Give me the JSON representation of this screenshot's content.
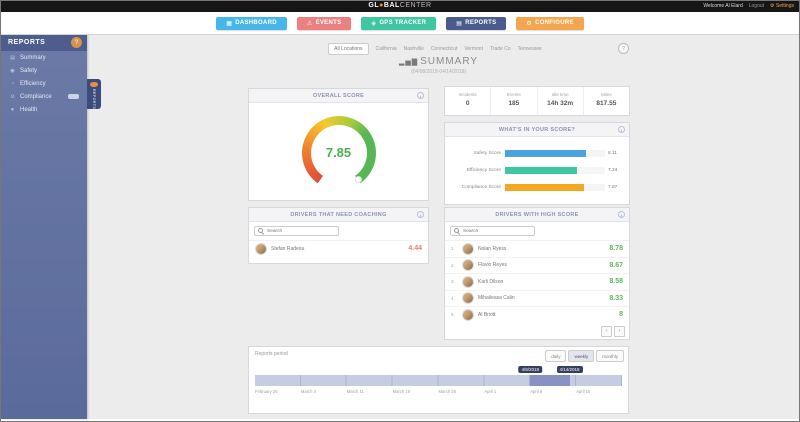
{
  "topbar": {
    "logo_pre": "GL",
    "logo_dot": "●",
    "logo_mid": "BAL",
    "logo_suf": "CENTER",
    "welcome": "Welcome Al Elard",
    "logout": "Logout",
    "settings_icon": "⚙",
    "settings": "Settings"
  },
  "nav": {
    "items": [
      {
        "label": "DASHBOARD",
        "icon": "▦",
        "color": "#47b7e9"
      },
      {
        "label": "EVENTS",
        "icon": "⚠",
        "color": "#ea8080"
      },
      {
        "label": "GPS TRACKER",
        "icon": "◈",
        "color": "#3fc6a3"
      },
      {
        "label": "REPORTS",
        "icon": "▤",
        "color": "#4a5b8e"
      },
      {
        "label": "CONFIGURE",
        "icon": "⚙",
        "color": "#f3a64d"
      }
    ],
    "active": "REPORTS"
  },
  "sidebar": {
    "title": "REPORTS",
    "help_icon": "?",
    "ribbon_label": "REPORTS",
    "items": [
      {
        "label": "Summary",
        "icon": "▤"
      },
      {
        "label": "Safety",
        "icon": "◉"
      },
      {
        "label": "Efficiency",
        "icon": "◔"
      },
      {
        "label": "Compliance",
        "icon": "⊙"
      },
      {
        "label": "Health",
        "icon": "♥"
      }
    ]
  },
  "tabs": {
    "items": [
      "All Locations",
      "California",
      "Nashville",
      "Connecticut",
      "Vermont",
      "Trade Co",
      "Tennessee"
    ],
    "active": "All Locations"
  },
  "summary_header": {
    "icon": "▂▅▇",
    "title": "SUMMARY",
    "subtitle": "(04/08/2018-04/14/2018)",
    "help_icon": "?"
  },
  "overall_score": {
    "title": "OVERALL SCORE",
    "value": "7.85"
  },
  "stats": {
    "items": [
      {
        "label": "Incidents",
        "value": "0"
      },
      {
        "label": "Events",
        "value": "185"
      },
      {
        "label": "Idle time",
        "value": "14h 32m"
      },
      {
        "label": "Miles",
        "value": "817.55"
      }
    ]
  },
  "score_bars": {
    "title": "WHAT'S IN YOUR SCORE?",
    "max": 10,
    "items": [
      {
        "label": "Safety Score",
        "value": 8.11,
        "display": "8.11",
        "color": "#4aa3e0"
      },
      {
        "label": "Efficiency Score",
        "value": 7.24,
        "display": "7.24",
        "color": "#3fc6a3"
      },
      {
        "label": "Compliance Score",
        "value": 7.87,
        "display": "7.87",
        "color": "#f5a623"
      }
    ]
  },
  "coaching": {
    "title": "DRIVERS THAT NEED COACHING",
    "search_placeholder": "Search",
    "drivers": [
      {
        "name": "Stefan Radeou",
        "score": "4.44"
      }
    ]
  },
  "high_score": {
    "title": "DRIVERS WITH HIGH SCORE",
    "search_placeholder": "Search",
    "drivers": [
      {
        "rank": "1.",
        "name": "Nolan Ryess",
        "score": "8.78"
      },
      {
        "rank": "2.",
        "name": "Flavio Reyes",
        "score": "8.67"
      },
      {
        "rank": "3.",
        "name": "Karli Dilson",
        "score": "8.58"
      },
      {
        "rank": "4.",
        "name": "Mihaileasa Calin",
        "score": "8.33"
      },
      {
        "rank": "5.",
        "name": "Al Briott",
        "score": "8"
      }
    ],
    "pagination": {
      "prev": "‹",
      "next": "›"
    }
  },
  "period": {
    "label": "Reports period",
    "buttons": [
      {
        "label": "daily"
      },
      {
        "label": "weekly"
      },
      {
        "label": "monthly"
      }
    ],
    "active_button": "weekly",
    "start_badge": "4/8/2018",
    "end_badge": "4/14/2018",
    "ticks": [
      "February 26",
      "March 4",
      "March 11",
      "March 18",
      "March 25",
      "April 1",
      "April 8",
      "April 15"
    ]
  },
  "colors": {
    "score_green": "#4caf50",
    "score_red": "#e87b7b",
    "timeline_selection": "#8893c3"
  }
}
